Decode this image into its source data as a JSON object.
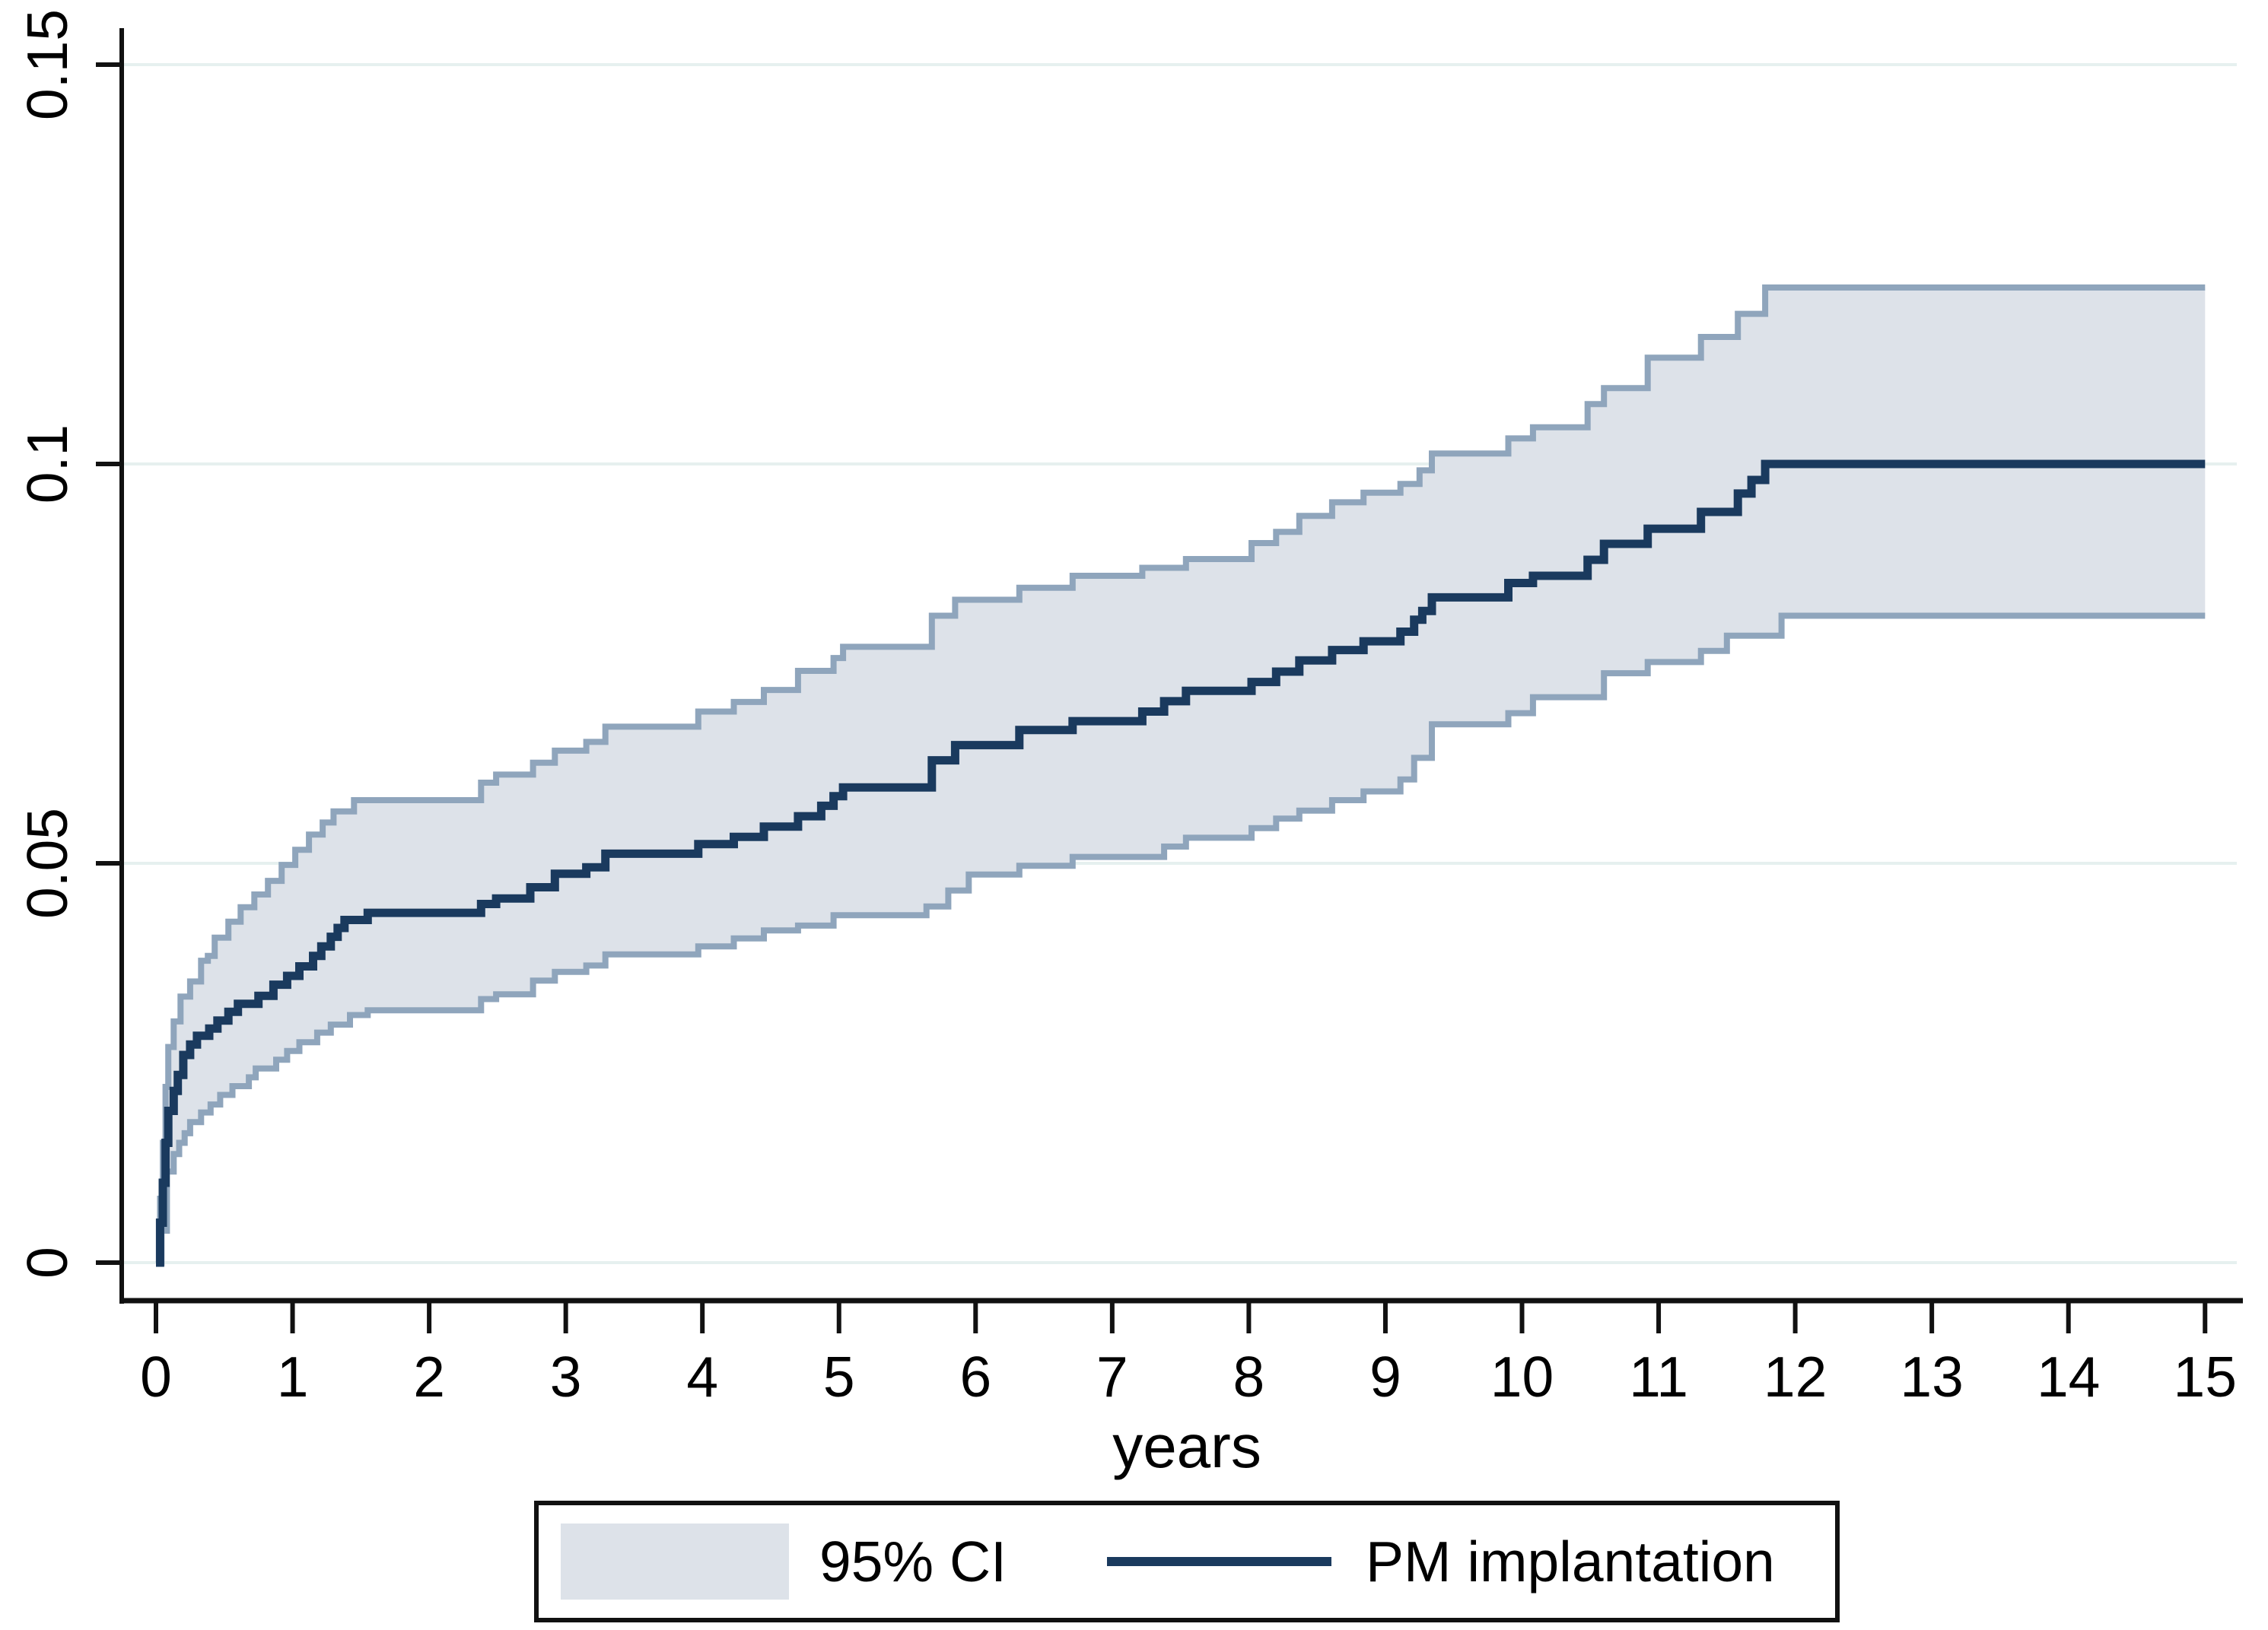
{
  "page": {
    "background": "#ffffff"
  },
  "axis_titles": {
    "x": "years"
  },
  "legend": {
    "ci_label": "95% CI",
    "line_label": "PM implantation"
  },
  "colors": {
    "curve": "#1a3a5e",
    "band_fill": "#dde2e9",
    "band_edge": "#8fa5bc",
    "grid": "#e6f0ef",
    "axis": "#111111",
    "text": "#000000",
    "legend_border": "#111111",
    "background": "#ffffff"
  },
  "chart_data": {
    "type": "line",
    "subtype": "kaplan-meier-cumulative-incidence-with-ci-band",
    "title": "",
    "xlabel": "years",
    "ylabel": "",
    "xlim": [
      0,
      15
    ],
    "ylim": [
      0,
      0.15
    ],
    "grid": "horizontal",
    "legend_position": "bottom-center",
    "x_ticks": [
      {
        "v": 0,
        "label": "0"
      },
      {
        "v": 1,
        "label": "1"
      },
      {
        "v": 2,
        "label": "2"
      },
      {
        "v": 3,
        "label": "3"
      },
      {
        "v": 4,
        "label": "4"
      },
      {
        "v": 5,
        "label": "5"
      },
      {
        "v": 6,
        "label": "6"
      },
      {
        "v": 7,
        "label": "7"
      },
      {
        "v": 8,
        "label": "8"
      },
      {
        "v": 9,
        "label": "9"
      },
      {
        "v": 10,
        "label": "10"
      },
      {
        "v": 11,
        "label": "11"
      },
      {
        "v": 12,
        "label": "12"
      },
      {
        "v": 13,
        "label": "13"
      },
      {
        "v": 14,
        "label": "14"
      },
      {
        "v": 15,
        "label": "15"
      }
    ],
    "y_ticks": [
      {
        "v": 0,
        "label": "0"
      },
      {
        "v": 0.05,
        "label": "0.05"
      },
      {
        "v": 0.1,
        "label": "0.1"
      },
      {
        "v": 0.15,
        "label": "0.15"
      }
    ],
    "series": [
      {
        "name": "PM implantation",
        "role": "estimate",
        "step": true,
        "points": [
          [
            0,
            0
          ],
          [
            0.03,
            0.005
          ],
          [
            0.05,
            0.01
          ],
          [
            0.07,
            0.015
          ],
          [
            0.09,
            0.019
          ],
          [
            0.13,
            0.0215
          ],
          [
            0.16,
            0.0235
          ],
          [
            0.2,
            0.026
          ],
          [
            0.25,
            0.0273
          ],
          [
            0.3,
            0.0284
          ],
          [
            0.39,
            0.0293
          ],
          [
            0.45,
            0.0303
          ],
          [
            0.53,
            0.0314
          ],
          [
            0.6,
            0.0324
          ],
          [
            0.75,
            0.0334
          ],
          [
            0.86,
            0.0348
          ],
          [
            0.96,
            0.0359
          ],
          [
            1.05,
            0.0371
          ],
          [
            1.15,
            0.0384
          ],
          [
            1.21,
            0.0396
          ],
          [
            1.28,
            0.0408
          ],
          [
            1.33,
            0.0419
          ],
          [
            1.38,
            0.0429
          ],
          [
            1.55,
            0.0438
          ],
          [
            2.38,
            0.0449
          ],
          [
            2.49,
            0.0456
          ],
          [
            2.74,
            0.047
          ],
          [
            2.92,
            0.0487
          ],
          [
            3.15,
            0.0495
          ],
          [
            3.29,
            0.0512
          ],
          [
            3.97,
            0.0524
          ],
          [
            4.23,
            0.0533
          ],
          [
            4.45,
            0.0546
          ],
          [
            4.7,
            0.0559
          ],
          [
            4.87,
            0.0572
          ],
          [
            4.96,
            0.0584
          ],
          [
            5.03,
            0.0595
          ],
          [
            5.68,
            0.0629
          ],
          [
            5.85,
            0.0648
          ],
          [
            6.32,
            0.0667
          ],
          [
            6.71,
            0.0678
          ],
          [
            7.22,
            0.069
          ],
          [
            7.38,
            0.0703
          ],
          [
            7.54,
            0.0716
          ],
          [
            8.02,
            0.0727
          ],
          [
            8.2,
            0.074
          ],
          [
            8.37,
            0.0754
          ],
          [
            8.61,
            0.0767
          ],
          [
            8.84,
            0.0778
          ],
          [
            9.11,
            0.079
          ],
          [
            9.21,
            0.0805
          ],
          [
            9.27,
            0.0816
          ],
          [
            9.34,
            0.0833
          ],
          [
            9.9,
            0.0851
          ],
          [
            10.08,
            0.086
          ],
          [
            10.48,
            0.088
          ],
          [
            10.6,
            0.09
          ],
          [
            10.92,
            0.0919
          ],
          [
            11.31,
            0.094
          ],
          [
            11.58,
            0.0963
          ],
          [
            11.68,
            0.098
          ],
          [
            11.78,
            0.1
          ],
          [
            15,
            0.1
          ]
        ]
      },
      {
        "name": "95% CI upper",
        "role": "ci_upper",
        "step": true,
        "points": [
          [
            0,
            0
          ],
          [
            0.03,
            0.008
          ],
          [
            0.05,
            0.015
          ],
          [
            0.07,
            0.022
          ],
          [
            0.09,
            0.027
          ],
          [
            0.13,
            0.0302
          ],
          [
            0.18,
            0.0333
          ],
          [
            0.25,
            0.0352
          ],
          [
            0.33,
            0.0378
          ],
          [
            0.38,
            0.0384
          ],
          [
            0.43,
            0.0407
          ],
          [
            0.53,
            0.0427
          ],
          [
            0.62,
            0.0445
          ],
          [
            0.72,
            0.0461
          ],
          [
            0.82,
            0.0478
          ],
          [
            0.92,
            0.0498
          ],
          [
            1.02,
            0.0517
          ],
          [
            1.12,
            0.0536
          ],
          [
            1.22,
            0.0551
          ],
          [
            1.3,
            0.0565
          ],
          [
            1.45,
            0.0579
          ],
          [
            2.38,
            0.0601
          ],
          [
            2.49,
            0.0611
          ],
          [
            2.76,
            0.0626
          ],
          [
            2.92,
            0.0641
          ],
          [
            3.15,
            0.0652
          ],
          [
            3.29,
            0.0671
          ],
          [
            3.97,
            0.069
          ],
          [
            4.23,
            0.0702
          ],
          [
            4.45,
            0.0717
          ],
          [
            4.7,
            0.0741
          ],
          [
            4.96,
            0.0757
          ],
          [
            5.03,
            0.0771
          ],
          [
            5.68,
            0.081
          ],
          [
            5.85,
            0.083
          ],
          [
            6.32,
            0.0845
          ],
          [
            6.71,
            0.086
          ],
          [
            7.22,
            0.087
          ],
          [
            7.54,
            0.0881
          ],
          [
            8.02,
            0.0901
          ],
          [
            8.2,
            0.0915
          ],
          [
            8.37,
            0.0935
          ],
          [
            8.61,
            0.0952
          ],
          [
            8.84,
            0.0964
          ],
          [
            9.11,
            0.0975
          ],
          [
            9.25,
            0.0992
          ],
          [
            9.34,
            0.1013
          ],
          [
            9.9,
            0.1032
          ],
          [
            10.08,
            0.1046
          ],
          [
            10.48,
            0.1075
          ],
          [
            10.6,
            0.1095
          ],
          [
            10.92,
            0.1133
          ],
          [
            11.31,
            0.1159
          ],
          [
            11.58,
            0.1188
          ],
          [
            11.78,
            0.1221
          ],
          [
            15,
            0.1221
          ]
        ]
      },
      {
        "name": "95% CI lower",
        "role": "ci_lower",
        "step": true,
        "points": [
          [
            0,
            0
          ],
          [
            0.04,
            0.004
          ],
          [
            0.08,
            0.0114
          ],
          [
            0.13,
            0.0136
          ],
          [
            0.17,
            0.015
          ],
          [
            0.21,
            0.0162
          ],
          [
            0.25,
            0.0176
          ],
          [
            0.33,
            0.0188
          ],
          [
            0.4,
            0.0198
          ],
          [
            0.47,
            0.021
          ],
          [
            0.56,
            0.0221
          ],
          [
            0.68,
            0.0232
          ],
          [
            0.73,
            0.0243
          ],
          [
            0.88,
            0.0254
          ],
          [
            0.96,
            0.0265
          ],
          [
            1.05,
            0.0276
          ],
          [
            1.18,
            0.0288
          ],
          [
            1.28,
            0.0298
          ],
          [
            1.42,
            0.031
          ],
          [
            1.55,
            0.0316
          ],
          [
            2.38,
            0.033
          ],
          [
            2.49,
            0.0336
          ],
          [
            2.76,
            0.0353
          ],
          [
            2.92,
            0.0364
          ],
          [
            3.15,
            0.0372
          ],
          [
            3.29,
            0.0386
          ],
          [
            3.97,
            0.0396
          ],
          [
            4.23,
            0.0406
          ],
          [
            4.45,
            0.0416
          ],
          [
            4.7,
            0.0422
          ],
          [
            4.96,
            0.0435
          ],
          [
            5.64,
            0.0446
          ],
          [
            5.8,
            0.0466
          ],
          [
            5.95,
            0.0486
          ],
          [
            6.32,
            0.0497
          ],
          [
            6.71,
            0.0508
          ],
          [
            7.38,
            0.0521
          ],
          [
            7.54,
            0.0532
          ],
          [
            8.02,
            0.0544
          ],
          [
            8.2,
            0.0556
          ],
          [
            8.37,
            0.0566
          ],
          [
            8.61,
            0.0579
          ],
          [
            8.84,
            0.059
          ],
          [
            9.11,
            0.0605
          ],
          [
            9.21,
            0.0632
          ],
          [
            9.34,
            0.0674
          ],
          [
            9.9,
            0.0688
          ],
          [
            10.08,
            0.0708
          ],
          [
            10.6,
            0.0738
          ],
          [
            10.92,
            0.0752
          ],
          [
            11.31,
            0.0766
          ],
          [
            11.5,
            0.0785
          ],
          [
            11.9,
            0.081
          ],
          [
            15,
            0.081
          ]
        ]
      }
    ]
  }
}
